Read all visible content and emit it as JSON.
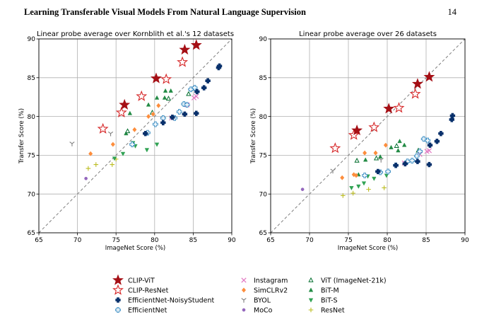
{
  "header": {
    "title": "Learning Transferable Visual Models From Natural Language Supervision",
    "page_number": "14"
  },
  "legend_items": [
    {
      "name": "CLIP-ViT",
      "marker": "star",
      "fill": "#a50f15",
      "stroke": "#a50f15"
    },
    {
      "name": "CLIP-ResNet",
      "marker": "star",
      "fill": "#ffffff",
      "stroke": "#d62728"
    },
    {
      "name": "EfficientNet-NoisyStudent",
      "marker": "plus",
      "fill": "#08306b",
      "stroke": "#08306b"
    },
    {
      "name": "EfficientNet",
      "marker": "plus-open",
      "fill": "#ffffff",
      "stroke": "#4292c6"
    },
    {
      "name": "Instagram",
      "marker": "x",
      "fill": "none",
      "stroke": "#e377c2"
    },
    {
      "name": "SimCLRv2",
      "marker": "diamond",
      "fill": "#fd8d3c",
      "stroke": "#fd8d3c"
    },
    {
      "name": "BYOL",
      "marker": "tri-y",
      "fill": "none",
      "stroke": "#7f7f7f"
    },
    {
      "name": "MoCo",
      "marker": "dot",
      "fill": "#9467bd",
      "stroke": "#9467bd"
    },
    {
      "name": "ViT (ImageNet-21k)",
      "marker": "tri-open",
      "fill": "#ffffff",
      "stroke": "#006d2c"
    },
    {
      "name": "BiT-M",
      "marker": "tri-up",
      "fill": "#238b45",
      "stroke": "#238b45"
    },
    {
      "name": "BiT-S",
      "marker": "tri-down",
      "fill": "#31a354",
      "stroke": "#31a354"
    },
    {
      "name": "ResNet",
      "marker": "plus-thin",
      "fill": "none",
      "stroke": "#bcbd22"
    }
  ],
  "chart_data": [
    {
      "type": "scatter",
      "title": "Linear probe average over Kornblith et al.'s 12 datasets",
      "xlabel": "ImageNet Score (%)",
      "ylabel": "Transfer Score (%)",
      "xlim": [
        65,
        90
      ],
      "ylim": [
        65,
        90
      ],
      "xticks": [
        65,
        70,
        75,
        80,
        85,
        90
      ],
      "yticks": [
        65,
        70,
        75,
        80,
        85,
        90
      ],
      "grid": true,
      "reference_line": "y = x",
      "series": [
        {
          "name": "CLIP-ViT",
          "points": [
            [
              76.1,
              81.5
            ],
            [
              80.2,
              84.9
            ],
            [
              83.9,
              88.6
            ],
            [
              85.4,
              89.2
            ]
          ]
        },
        {
          "name": "CLIP-ResNet",
          "points": [
            [
              73.3,
              78.4
            ],
            [
              75.7,
              80.5
            ],
            [
              78.3,
              82.6
            ],
            [
              81.5,
              84.8
            ],
            [
              83.6,
              87.0
            ]
          ]
        },
        {
          "name": "EfficientNet-NoisyStudent",
          "points": [
            [
              78.8,
              77.8
            ],
            [
              81.1,
              79.2
            ],
            [
              82.3,
              79.9
            ],
            [
              83.9,
              80.3
            ],
            [
              85.4,
              80.4
            ],
            [
              85.5,
              83.2
            ],
            [
              86.4,
              83.7
            ],
            [
              86.9,
              84.6
            ],
            [
              88.3,
              86.3
            ],
            [
              88.4,
              86.5
            ]
          ]
        },
        {
          "name": "EfficientNet",
          "points": [
            [
              77.1,
              76.4
            ],
            [
              79.1,
              77.9
            ],
            [
              80.1,
              79.0
            ],
            [
              81.1,
              79.8
            ],
            [
              82.6,
              79.8
            ],
            [
              83.2,
              80.6
            ],
            [
              83.8,
              81.6
            ],
            [
              84.2,
              81.5
            ],
            [
              84.7,
              83.5
            ],
            [
              85.2,
              83.7
            ]
          ]
        },
        {
          "name": "Instagram",
          "points": [
            [
              82.2,
              79.8
            ],
            [
              84.2,
              81.5
            ],
            [
              85.1,
              82.4
            ],
            [
              85.4,
              82.6
            ]
          ]
        },
        {
          "name": "SimCLRv2",
          "points": [
            [
              71.7,
              75.2
            ],
            [
              74.6,
              76.4
            ],
            [
              77.4,
              78.3
            ],
            [
              79.2,
              80.0
            ],
            [
              79.8,
              80.3
            ],
            [
              80.5,
              81.4
            ]
          ]
        },
        {
          "name": "BYOL",
          "points": [
            [
              69.3,
              76.5
            ],
            [
              74.3,
              77.8
            ]
          ]
        },
        {
          "name": "MoCo",
          "points": [
            [
              71.1,
              72.0
            ]
          ]
        },
        {
          "name": "ViT (ImageNet-21k)",
          "points": [
            [
              76.5,
              78.1
            ],
            [
              79.7,
              80.5
            ],
            [
              81.8,
              82.3
            ],
            [
              84.4,
              82.9
            ]
          ]
        },
        {
          "name": "BiT-M",
          "points": [
            [
              76.3,
              77.8
            ],
            [
              76.8,
              80.4
            ],
            [
              79.2,
              81.5
            ],
            [
              80.3,
              82.4
            ],
            [
              81.3,
              82.4
            ],
            [
              81.4,
              83.3
            ],
            [
              82.1,
              83.3
            ]
          ]
        },
        {
          "name": "BiT-S",
          "points": [
            [
              74.8,
              74.6
            ],
            [
              75.9,
              75.2
            ],
            [
              77.2,
              76.6
            ],
            [
              77.5,
              76.2
            ],
            [
              79.0,
              75.7
            ],
            [
              80.3,
              76.4
            ]
          ]
        },
        {
          "name": "ResNet",
          "points": [
            [
              71.4,
              73.3
            ],
            [
              72.4,
              73.8
            ],
            [
              74.5,
              73.8
            ],
            [
              75.0,
              74.5
            ]
          ]
        }
      ]
    },
    {
      "type": "scatter",
      "title": "Linear probe average over 26 datasets",
      "xlabel": "ImageNet Score (%)",
      "ylabel": "Transfer Score (%)",
      "xlim": [
        65,
        90
      ],
      "ylim": [
        65,
        90
      ],
      "xticks": [
        65,
        70,
        75,
        80,
        85,
        90
      ],
      "yticks": [
        65,
        70,
        75,
        80,
        85,
        90
      ],
      "grid": true,
      "reference_line": "y = x",
      "series": [
        {
          "name": "CLIP-ViT",
          "points": [
            [
              76.1,
              78.2
            ],
            [
              80.2,
              81.0
            ],
            [
              83.9,
              84.2
            ],
            [
              85.4,
              85.1
            ]
          ]
        },
        {
          "name": "CLIP-ResNet",
          "points": [
            [
              73.3,
              75.9
            ],
            [
              75.7,
              77.6
            ],
            [
              78.3,
              78.6
            ],
            [
              81.5,
              81.1
            ],
            [
              83.6,
              82.9
            ]
          ]
        },
        {
          "name": "EfficientNet-NoisyStudent",
          "points": [
            [
              78.8,
              72.9
            ],
            [
              81.1,
              73.7
            ],
            [
              82.3,
              73.9
            ],
            [
              83.9,
              74.2
            ],
            [
              85.4,
              73.8
            ],
            [
              85.5,
              76.3
            ],
            [
              86.4,
              76.8
            ],
            [
              86.9,
              77.8
            ],
            [
              88.3,
              79.6
            ],
            [
              88.4,
              80.1
            ]
          ]
        },
        {
          "name": "EfficientNet",
          "points": [
            [
              77.1,
              72.4
            ],
            [
              79.1,
              72.8
            ],
            [
              80.1,
              72.9
            ],
            [
              81.1,
              73.7
            ],
            [
              82.6,
              74.2
            ],
            [
              83.2,
              74.3
            ],
            [
              83.8,
              74.9
            ],
            [
              84.2,
              75.5
            ],
            [
              84.7,
              77.1
            ],
            [
              85.2,
              76.9
            ]
          ]
        },
        {
          "name": "Instagram",
          "points": [
            [
              82.2,
              74.0
            ],
            [
              84.2,
              75.1
            ],
            [
              85.1,
              75.5
            ],
            [
              85.4,
              75.6
            ]
          ]
        },
        {
          "name": "SimCLRv2",
          "points": [
            [
              74.2,
              72.1
            ],
            [
              75.7,
              72.5
            ],
            [
              76.0,
              72.4
            ],
            [
              77.1,
              75.3
            ],
            [
              78.5,
              75.3
            ],
            [
              79.8,
              76.3
            ]
          ]
        },
        {
          "name": "BYOL",
          "points": [
            [
              73.0,
              73.0
            ],
            [
              79.2,
              74.4
            ]
          ]
        },
        {
          "name": "MoCo",
          "points": [
            [
              69.1,
              70.6
            ]
          ]
        },
        {
          "name": "ViT (ImageNet-21k)",
          "points": [
            [
              76.1,
              74.3
            ],
            [
              78.6,
              74.6
            ],
            [
              81.2,
              76.2
            ],
            [
              84.0,
              75.6
            ]
          ]
        },
        {
          "name": "BiT-M",
          "points": [
            [
              76.3,
              72.5
            ],
            [
              77.2,
              74.4
            ],
            [
              79.1,
              74.8
            ],
            [
              80.5,
              76.0
            ],
            [
              81.4,
              75.6
            ],
            [
              81.6,
              76.8
            ],
            [
              82.2,
              76.3
            ]
          ]
        },
        {
          "name": "BiT-S",
          "points": [
            [
              75.4,
              70.8
            ],
            [
              76.3,
              71.0
            ],
            [
              77.0,
              71.4
            ],
            [
              77.5,
              72.3
            ],
            [
              78.3,
              72.0
            ],
            [
              79.9,
              72.4
            ]
          ]
        },
        {
          "name": "ResNet",
          "points": [
            [
              74.3,
              69.8
            ],
            [
              75.6,
              70.1
            ],
            [
              77.6,
              70.6
            ],
            [
              79.6,
              70.8
            ]
          ]
        }
      ]
    }
  ]
}
